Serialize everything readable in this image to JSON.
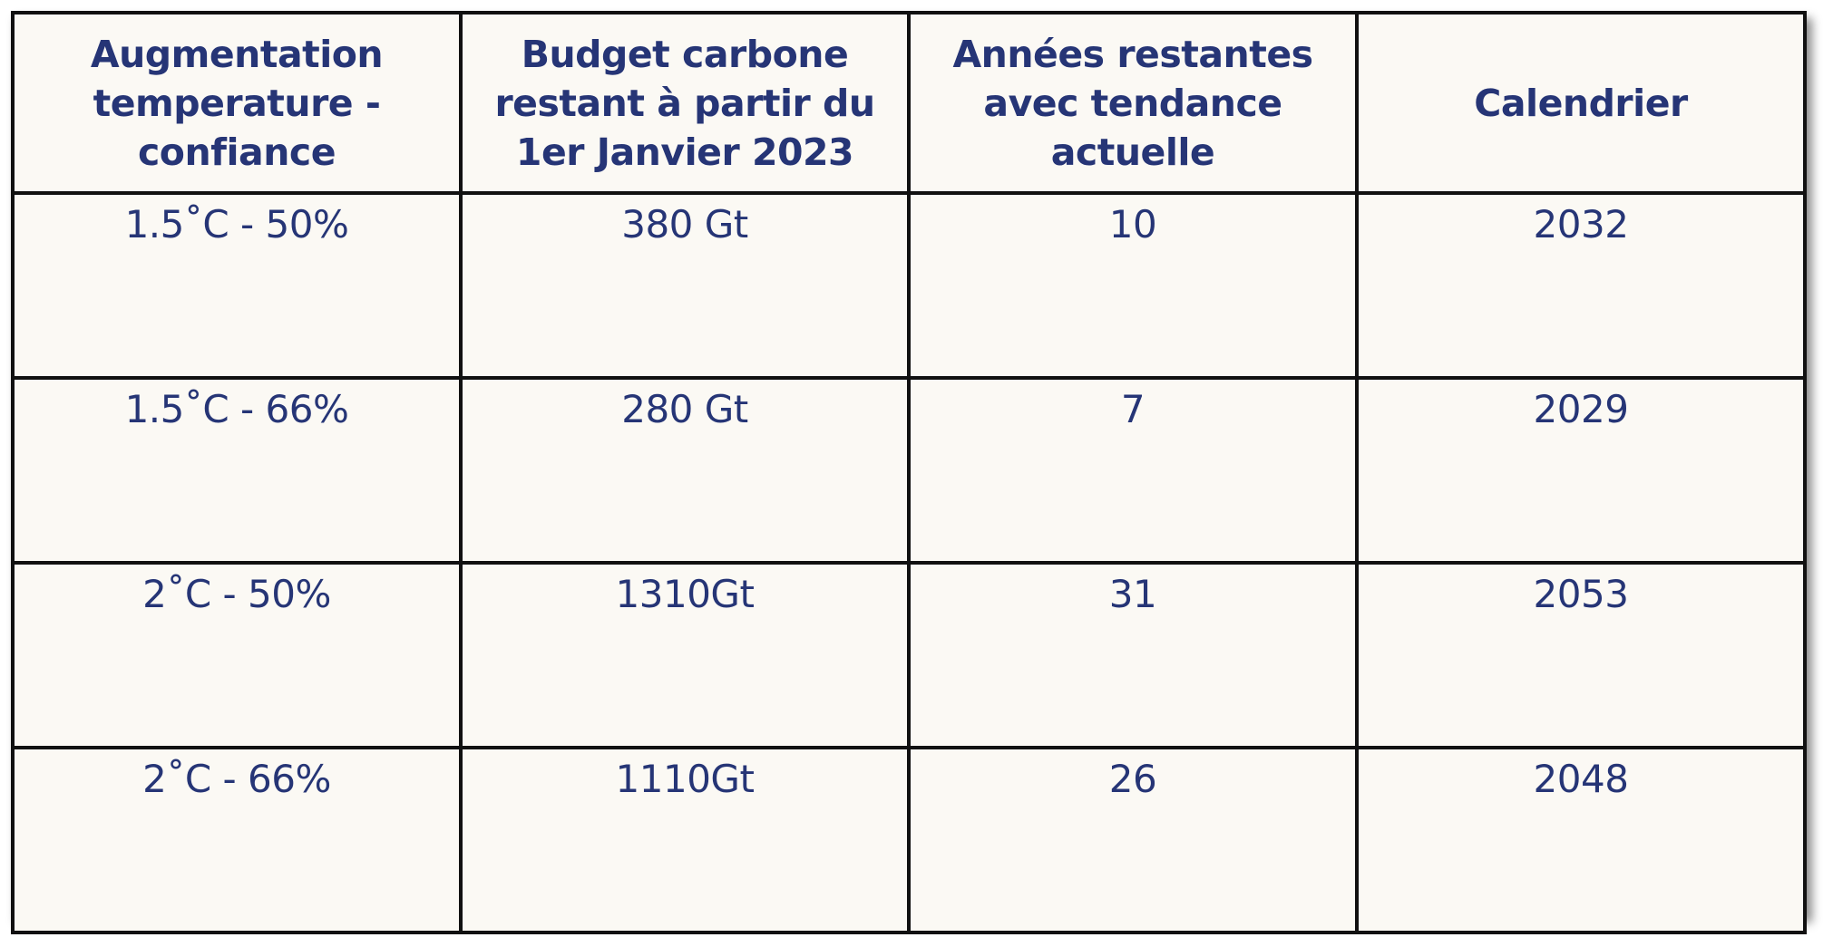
{
  "table": {
    "headers": [
      "Augmentation temperature - confiance",
      "Budget carbone restant à partir du 1er Janvier 2023",
      "Années restantes avec tendance actuelle",
      "Calendrier"
    ],
    "rows": [
      [
        "1.5˚C - 50%",
        "380 Gt",
        "10",
        "2032"
      ],
      [
        "1.5˚C - 66%",
        "280 Gt",
        "7",
        "2029"
      ],
      [
        "2˚C - 50%",
        "1310Gt",
        "31",
        "2053"
      ],
      [
        "2˚C - 66%",
        "1110Gt",
        "26",
        "2048"
      ]
    ]
  },
  "colors": {
    "text": "#263576",
    "background": "#fbf9f4",
    "border": "#111111"
  }
}
